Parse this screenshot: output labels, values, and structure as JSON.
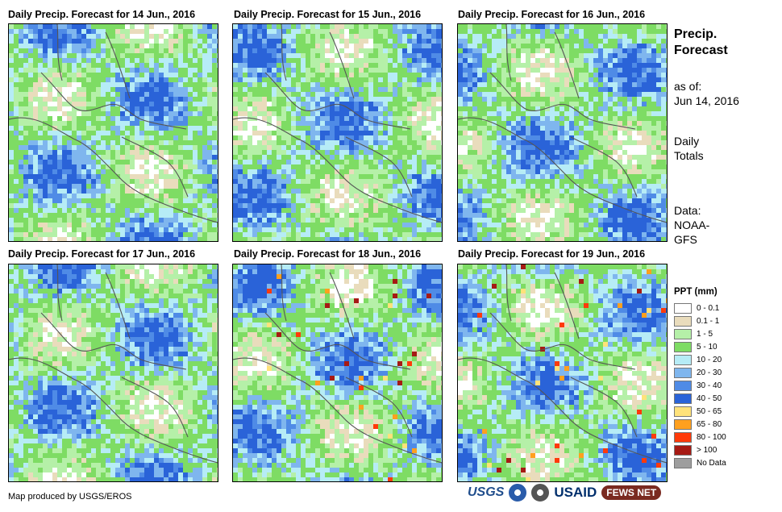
{
  "panels": [
    {
      "title": "Daily Precip. Forecast for 14 Jun., 2016",
      "seed": 3
    },
    {
      "title": "Daily Precip. Forecast for 15 Jun., 2016",
      "seed": 11
    },
    {
      "title": "Daily Precip. Forecast for 16 Jun., 2016",
      "seed": 19
    },
    {
      "title": "Daily Precip. Forecast for 17 Jun., 2016",
      "seed": 27
    },
    {
      "title": "Daily Precip. Forecast for 18 Jun., 2016",
      "seed": 35
    },
    {
      "title": "Daily Precip. Forecast for 19 Jun., 2016",
      "seed": 43
    }
  ],
  "side": {
    "heading_line1": "Precip.",
    "heading_line2": "Forecast",
    "asof_label": "as of:",
    "asof_date": "Jun 14, 2016",
    "totals_line1": "Daily",
    "totals_line2": "Totals",
    "data_label": "Data:",
    "data_src1": "NOAA-",
    "data_src2": "GFS"
  },
  "legend": {
    "title": "PPT (mm)",
    "items": [
      {
        "label": "0 - 0.1",
        "color": "#ffffff"
      },
      {
        "label": "0.1 - 1",
        "color": "#e9dcbc"
      },
      {
        "label": "1 - 5",
        "color": "#b5f0a8"
      },
      {
        "label": "5 - 10",
        "color": "#7edc64"
      },
      {
        "label": "10 - 20",
        "color": "#b6ecf6"
      },
      {
        "label": "20 - 30",
        "color": "#7fb6ee"
      },
      {
        "label": "30 - 40",
        "color": "#4f8be6"
      },
      {
        "label": "40 - 50",
        "color": "#2a63d8"
      },
      {
        "label": "50 - 65",
        "color": "#ffe27a"
      },
      {
        "label": "65 - 80",
        "color": "#ffa01e"
      },
      {
        "label": "80 - 100",
        "color": "#ff3a0a"
      },
      {
        "label": "> 100",
        "color": "#a61a14"
      },
      {
        "label": "No Data",
        "color": "#9e9e9e"
      }
    ]
  },
  "credit": "Map produced by USGS/EROS",
  "logos": {
    "usgs": "USGS",
    "usaid": "USAID",
    "fews": "FEWS NET"
  }
}
